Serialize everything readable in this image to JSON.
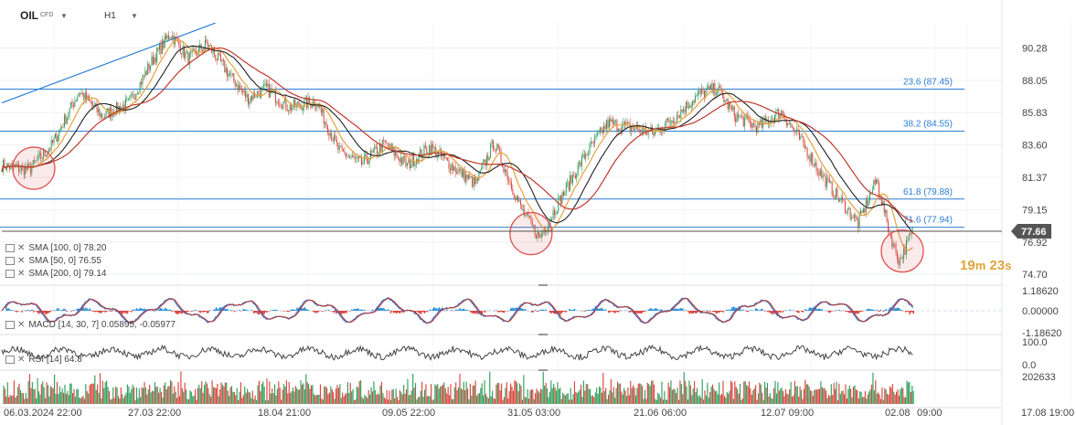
{
  "header": {
    "symbol": "OIL",
    "symbol_type": "CFD",
    "timeframe": "H1",
    "dropdown_icon": "caret-down-icon"
  },
  "indicators": [
    {
      "label": "SMA [100, 0] 78.20",
      "color": "#c0392b"
    },
    {
      "label": "SMA [50, 0] 76.55",
      "color": "#222222"
    },
    {
      "label": "SMA [200, 0] 79.14",
      "color": "#e8a03a"
    }
  ],
  "macd_label": "MACD [14, 30, 7] 0.05895, -0.05977",
  "rsi_label": "RSI [14] 64.8",
  "countdown": {
    "minutes": "19",
    "min_unit": "m",
    "seconds": "23",
    "sec_unit": "s"
  },
  "colors": {
    "up": "#2e9e5b",
    "down": "#d9433a",
    "fib": "#2b7ed6",
    "price_tag": "#555555",
    "circle": "#e05050"
  },
  "chart_data": {
    "type": "candlestick",
    "instrument": "OIL CFD",
    "timeframe": "H1",
    "y_ticks": [
      "90.28",
      "88.05",
      "85.83",
      "83.60",
      "81.37",
      "79.15",
      "76.92",
      "74.70"
    ],
    "ylim": [
      74.2,
      92.2
    ],
    "current_price": "77.66",
    "x_ticks": [
      "06.03.2024 22:00",
      "27.03 22:00",
      "18.04 21:00",
      "09.05 22:00",
      "31.05 03:00",
      "21.06 06:00",
      "12.07 09:00",
      "02.08",
      "09:00",
      "17.08 19:00"
    ],
    "fibonacci": [
      {
        "label": "23.6 (87.45)",
        "value": 87.45
      },
      {
        "label": "38.2 (84.55)",
        "value": 84.55
      },
      {
        "label": "61.8 (79.88)",
        "value": 79.88
      },
      {
        "label": "71.6 (77.94)",
        "value": 77.94
      }
    ],
    "price_path": [
      {
        "t": 0,
        "p": 82.2
      },
      {
        "t": 0.03,
        "p": 81.9
      },
      {
        "t": 0.055,
        "p": 83.6
      },
      {
        "t": 0.085,
        "p": 87.3
      },
      {
        "t": 0.11,
        "p": 85.6
      },
      {
        "t": 0.14,
        "p": 86.5
      },
      {
        "t": 0.165,
        "p": 89.4
      },
      {
        "t": 0.185,
        "p": 91.3
      },
      {
        "t": 0.205,
        "p": 89.5
      },
      {
        "t": 0.225,
        "p": 90.6
      },
      {
        "t": 0.25,
        "p": 88.4
      },
      {
        "t": 0.27,
        "p": 86.8
      },
      {
        "t": 0.29,
        "p": 87.5
      },
      {
        "t": 0.315,
        "p": 86.2
      },
      {
        "t": 0.345,
        "p": 86.6
      },
      {
        "t": 0.37,
        "p": 83.2
      },
      {
        "t": 0.395,
        "p": 82.3
      },
      {
        "t": 0.42,
        "p": 83.7
      },
      {
        "t": 0.445,
        "p": 82.2
      },
      {
        "t": 0.47,
        "p": 83.5
      },
      {
        "t": 0.495,
        "p": 82.1
      },
      {
        "t": 0.52,
        "p": 80.9
      },
      {
        "t": 0.54,
        "p": 83.8
      },
      {
        "t": 0.57,
        "p": 79.2
      },
      {
        "t": 0.59,
        "p": 77.2
      },
      {
        "t": 0.615,
        "p": 80.1
      },
      {
        "t": 0.64,
        "p": 82.9
      },
      {
        "t": 0.665,
        "p": 85.1
      },
      {
        "t": 0.69,
        "p": 84.8
      },
      {
        "t": 0.715,
        "p": 84.4
      },
      {
        "t": 0.74,
        "p": 85.6
      },
      {
        "t": 0.765,
        "p": 87.1
      },
      {
        "t": 0.785,
        "p": 87.5
      },
      {
        "t": 0.805,
        "p": 85.6
      },
      {
        "t": 0.83,
        "p": 84.8
      },
      {
        "t": 0.855,
        "p": 85.9
      },
      {
        "t": 0.875,
        "p": 84.1
      },
      {
        "t": 0.9,
        "p": 81.5
      },
      {
        "t": 0.92,
        "p": 79.8
      },
      {
        "t": 0.94,
        "p": 78.2
      },
      {
        "t": 0.96,
        "p": 81.2
      },
      {
        "t": 0.975,
        "p": 77.4
      },
      {
        "t": 0.985,
        "p": 75.6
      },
      {
        "t": 1.0,
        "p": 77.66
      }
    ],
    "trendline": {
      "from": {
        "t": 0,
        "p": 86.5
      },
      "to": {
        "t": 0.234,
        "p": 92.0
      }
    },
    "highlights": [
      {
        "t": 0.035,
        "p": 82.0
      },
      {
        "t": 0.58,
        "p": 77.5
      },
      {
        "t": 0.987,
        "p": 76.3
      }
    ],
    "macd": {
      "ylim": [
        -1.2,
        1.2
      ],
      "y_ticks": [
        "1.18620",
        "0.00000",
        "-1.18620"
      ],
      "values": [
        0.05895,
        -0.05977
      ]
    },
    "rsi": {
      "ylim": [
        0,
        100
      ],
      "y_ticks": [
        "100.0",
        "0.0"
      ],
      "value": 64.8
    },
    "volume": {
      "y_ticks": [
        "202633"
      ]
    }
  }
}
